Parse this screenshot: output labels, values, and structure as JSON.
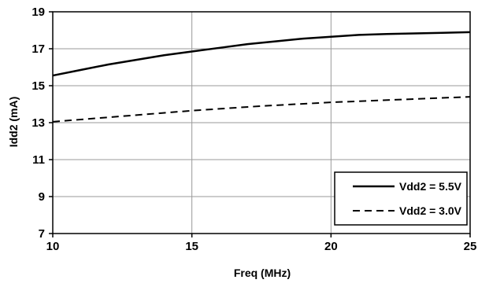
{
  "chart_data": {
    "type": "line",
    "xlabel": "Freq (MHz)",
    "ylabel": "Idd2 (mA)",
    "xlim": [
      10,
      25
    ],
    "ylim": [
      7,
      19
    ],
    "xticks": [
      "10",
      "15",
      "20",
      "25"
    ],
    "yticks": [
      "7",
      "9",
      "11",
      "13",
      "15",
      "17",
      "19"
    ],
    "grid": true,
    "legend_position": "bottom-right",
    "series": [
      {
        "name": "Vdd2 = 5.5V",
        "line_style": "solid",
        "x": [
          10,
          11,
          12,
          13,
          14,
          15,
          16,
          17,
          18,
          19,
          20,
          21,
          22,
          23,
          24,
          25
        ],
        "y": [
          15.55,
          15.85,
          16.15,
          16.4,
          16.65,
          16.85,
          17.05,
          17.25,
          17.4,
          17.55,
          17.65,
          17.75,
          17.8,
          17.83,
          17.86,
          17.9
        ]
      },
      {
        "name": "Vdd2 = 3.0V",
        "line_style": "dashed",
        "x": [
          10,
          12.5,
          15,
          17.5,
          20,
          22.5,
          25
        ],
        "y": [
          13.05,
          13.35,
          13.65,
          13.9,
          14.1,
          14.25,
          14.4
        ]
      }
    ]
  }
}
